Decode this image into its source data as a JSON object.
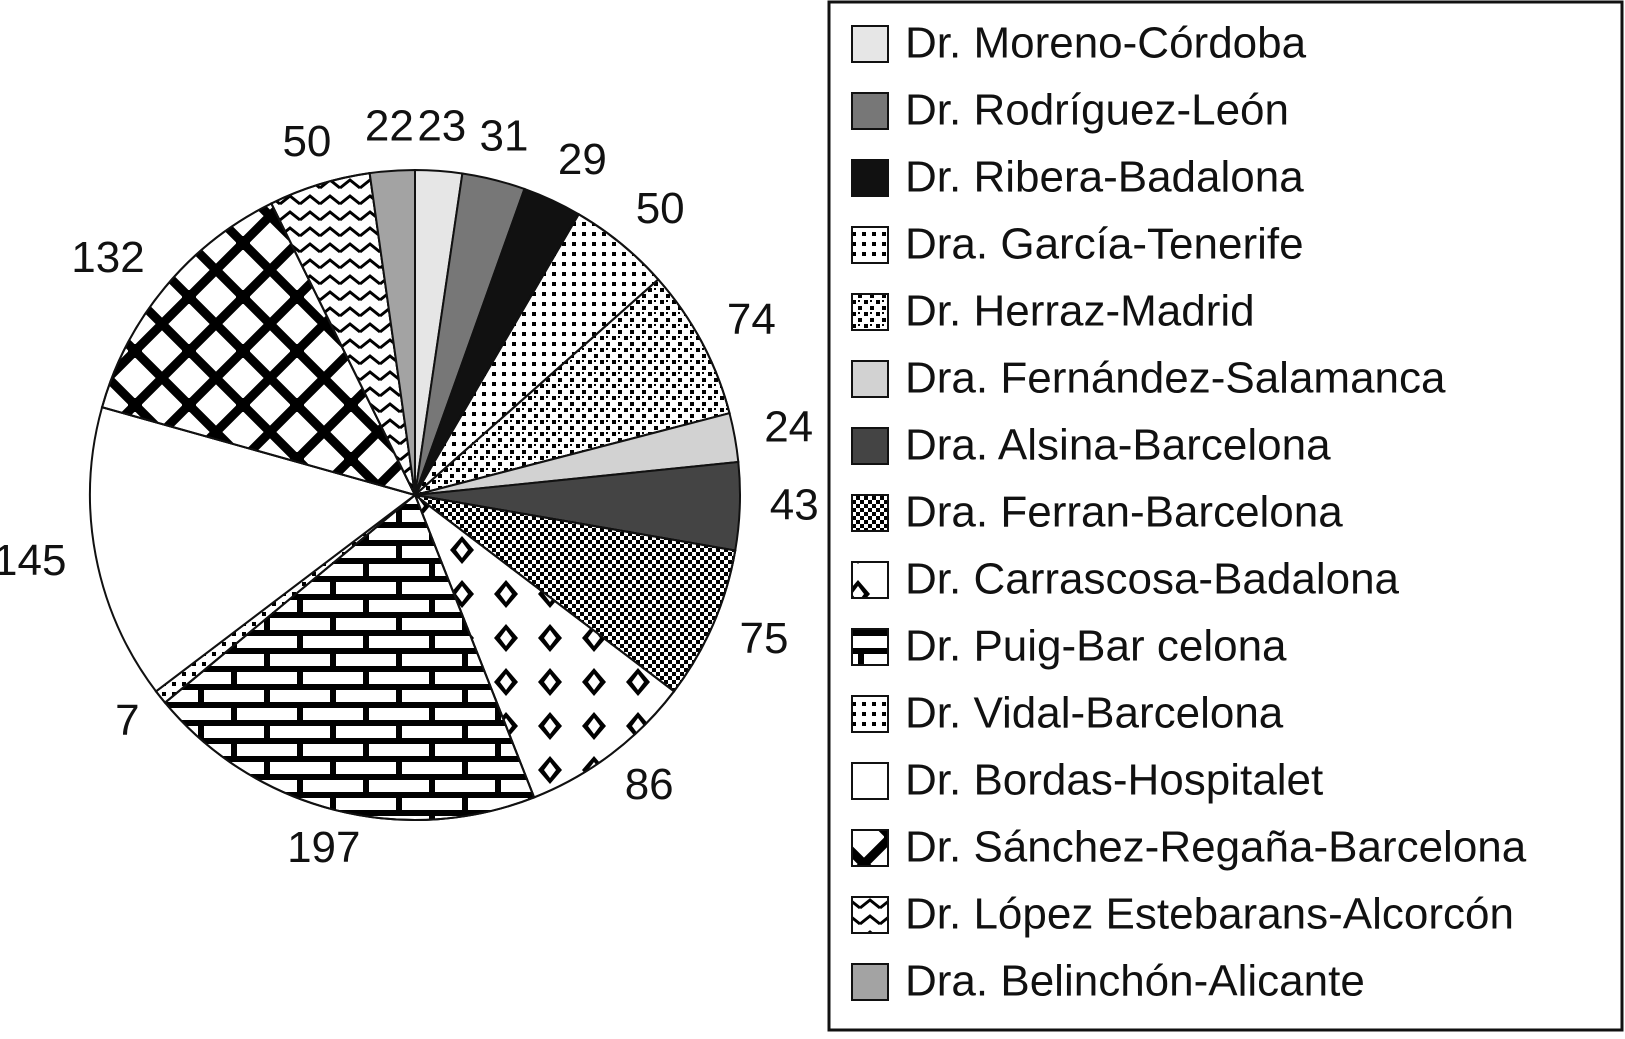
{
  "chart_data": {
    "type": "pie",
    "categories": [
      "Dr. Moreno-Córdoba",
      "Dr. Rodríguez-León",
      "Dr. Ribera-Badalona",
      "Dra. García-Tenerife",
      "Dr. Herraz-Madrid",
      "Dra. Fernández-Salamanca",
      "Dra. Alsina-Barcelona",
      "Dra. Ferran-Barcelona",
      "Dr. Carrascosa-Badalona",
      "Dr. Puig-Bar celona",
      "Dr. Vidal-Barcelona",
      "Dr. Bordas-Hospitalet",
      "Dr. Sánchez-Regaña-Barcelona",
      "Dr. López Estebarans-Alcorcón",
      "Dra. Belinchón-Alicante"
    ],
    "values": [
      23,
      31,
      29,
      50,
      74,
      24,
      43,
      75,
      86,
      197,
      7,
      145,
      132,
      50,
      22
    ],
    "colors": [
      "#e6e6e6",
      "#777777",
      "#111111",
      "#ffffff",
      "#ffffff",
      "#d2d2d2",
      "#444444",
      "#ffffff",
      "#ffffff",
      "#ffffff",
      "#ffffff",
      "#ffffff",
      "#ffffff",
      "#ffffff",
      "#a3a3a3"
    ]
  }
}
